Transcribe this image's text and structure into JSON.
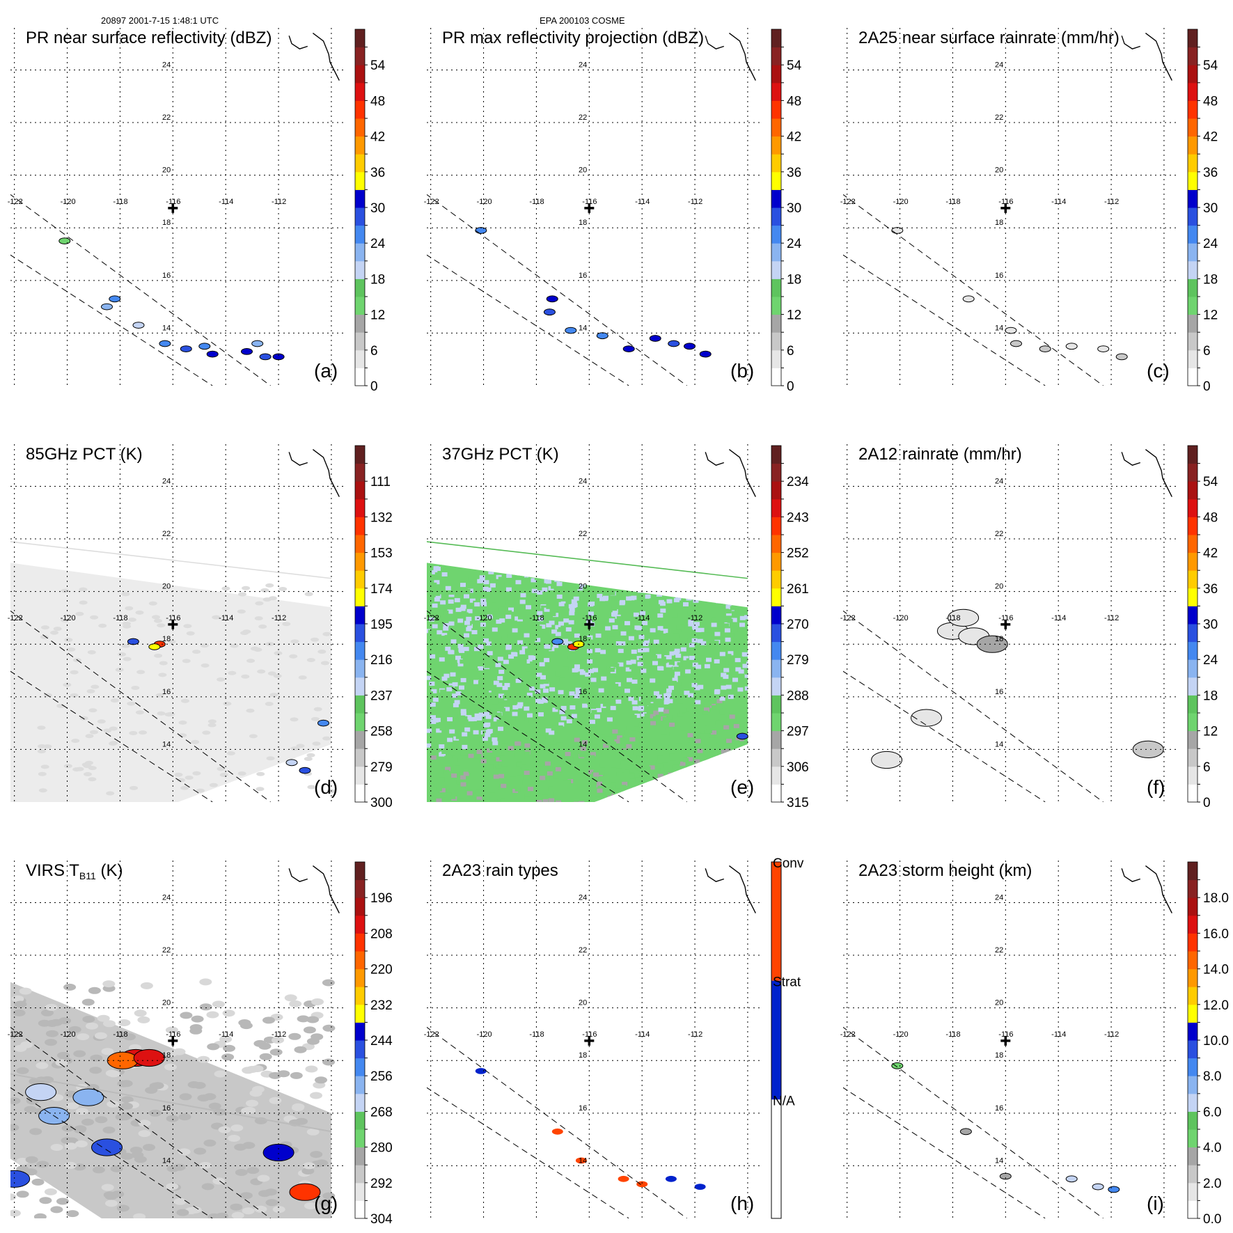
{
  "header": {
    "left": "20897 2001-7-15 1:48:1 UTC",
    "center": "EPA 200103 COSME"
  },
  "colors": {
    "ramp": [
      "#ffffff",
      "#e6e6e6",
      "#c8c8c8",
      "#a6a6a6",
      "#6fd46f",
      "#5ec45e",
      "#c4d4f4",
      "#8ab4f0",
      "#4488f0",
      "#2a50e0",
      "#0000cc",
      "#ffff00",
      "#ffcc00",
      "#ff9900",
      "#ff6600",
      "#ff3300",
      "#dd1111",
      "#aa1111",
      "#882222",
      "#602020"
    ],
    "raintype": {
      "na": "#ffffff",
      "strat": "#0022cc",
      "conv": "#ff4400"
    }
  },
  "grid": {
    "lon_ticks": [
      "-122",
      "-120",
      "-118",
      "-116",
      "-114",
      "-112"
    ],
    "lat_ticks": [
      "14",
      "16",
      "18",
      "20",
      "22",
      "24"
    ]
  },
  "chart_data": [
    {
      "id": "a",
      "type": "heatmap",
      "title": "PR near surface reflectivity (dBZ)",
      "label": "(a)",
      "colorbar": {
        "ticks": [
          "54",
          "48",
          "42",
          "36",
          "30",
          "24",
          "18",
          "12",
          "6",
          "0"
        ],
        "range": [
          0,
          60
        ]
      },
      "swath": "pr",
      "field": "pr_sparse",
      "cells": [
        [
          -120.1,
          17.5,
          12
        ],
        [
          -118.2,
          15.3,
          24
        ],
        [
          -118.5,
          15.0,
          22
        ],
        [
          -117.3,
          14.3,
          18
        ],
        [
          -116.3,
          13.6,
          26
        ],
        [
          -115.5,
          13.4,
          28
        ],
        [
          -114.8,
          13.5,
          24
        ],
        [
          -114.5,
          13.2,
          30
        ],
        [
          -113.2,
          13.3,
          30
        ],
        [
          -112.5,
          13.1,
          28
        ],
        [
          -112.0,
          13.1,
          32
        ],
        [
          -112.8,
          13.6,
          22
        ]
      ]
    },
    {
      "id": "b",
      "type": "heatmap",
      "title": "PR max reflectivity projection (dBZ)",
      "label": "(b)",
      "colorbar": {
        "ticks": [
          "54",
          "48",
          "42",
          "36",
          "30",
          "24",
          "18",
          "12",
          "6",
          "0"
        ],
        "range": [
          0,
          60
        ]
      },
      "swath": "pr",
      "field": "pr_sparse",
      "cells": [
        [
          -120.1,
          17.9,
          24
        ],
        [
          -117.4,
          15.3,
          32
        ],
        [
          -117.5,
          14.8,
          28
        ],
        [
          -116.7,
          14.1,
          26
        ],
        [
          -115.5,
          13.9,
          24
        ],
        [
          -114.5,
          13.4,
          30
        ],
        [
          -113.5,
          13.8,
          30
        ],
        [
          -112.8,
          13.6,
          28
        ],
        [
          -112.2,
          13.5,
          32
        ],
        [
          -111.6,
          13.2,
          30
        ]
      ]
    },
    {
      "id": "c",
      "type": "heatmap",
      "title": "2A25 near surface rainrate (mm/hr)",
      "label": "(c)",
      "colorbar": {
        "ticks": [
          "54",
          "48",
          "42",
          "36",
          "30",
          "24",
          "18",
          "12",
          "6",
          "0"
        ],
        "range": [
          0,
          60
        ]
      },
      "swath": "pr",
      "field": "pr_sparse",
      "cells": [
        [
          -120.1,
          17.9,
          4
        ],
        [
          -117.4,
          15.3,
          5
        ],
        [
          -115.8,
          14.1,
          4
        ],
        [
          -115.6,
          13.6,
          6
        ],
        [
          -114.5,
          13.4,
          6
        ],
        [
          -113.5,
          13.5,
          4
        ],
        [
          -112.3,
          13.4,
          5
        ],
        [
          -111.6,
          13.1,
          6
        ]
      ]
    },
    {
      "id": "d",
      "type": "heatmap",
      "title": "85GHz PCT (K)",
      "label": "(d)",
      "colorbar": {
        "ticks": [
          "111",
          "132",
          "153",
          "174",
          "195",
          "216",
          "237",
          "258",
          "279",
          "300"
        ],
        "range": [
          90,
          300
        ]
      },
      "swath": "tmi",
      "field": "pct85",
      "line_color": "#dddddd",
      "cells": [
        [
          -117.5,
          18.1,
          200
        ],
        [
          -116.5,
          18.0,
          140
        ],
        [
          -116.7,
          17.9,
          180
        ],
        [
          -110.3,
          15.0,
          210
        ],
        [
          -111.5,
          13.5,
          230
        ],
        [
          -111.0,
          13.2,
          205
        ]
      ]
    },
    {
      "id": "e",
      "type": "heatmap",
      "title": "37GHz PCT (K)",
      "label": "(e)",
      "colorbar": {
        "ticks": [
          "234",
          "243",
          "252",
          "261",
          "270",
          "279",
          "288",
          "297",
          "306",
          "315"
        ],
        "range": [
          225,
          315
        ]
      },
      "swath": "tmi",
      "field": "pct37",
      "line_color": "#55bb55",
      "cells": [
        [
          -116.6,
          17.9,
          245
        ],
        [
          -116.4,
          18.0,
          262
        ],
        [
          -117.2,
          18.1,
          275
        ],
        [
          -110.2,
          14.5,
          272
        ]
      ]
    },
    {
      "id": "f",
      "type": "heatmap",
      "title": "2A12 rainrate (mm/hr)",
      "label": "(f)",
      "colorbar": {
        "ticks": [
          "54",
          "48",
          "42",
          "36",
          "30",
          "24",
          "18",
          "12",
          "6",
          "0"
        ],
        "range": [
          0,
          60
        ]
      },
      "swath": "tmi",
      "field": "rain2a12",
      "cells": [
        [
          -118.0,
          18.5,
          4
        ],
        [
          -117.6,
          19.0,
          4
        ],
        [
          -117.2,
          18.3,
          4
        ],
        [
          -116.5,
          18.0,
          10
        ],
        [
          -119.0,
          15.2,
          4
        ],
        [
          -120.5,
          13.6,
          4
        ],
        [
          -110.6,
          14.0,
          6
        ]
      ]
    },
    {
      "id": "g",
      "type": "heatmap",
      "title": "VIRS T",
      "title_sub": "B11",
      "title_end": " (K)",
      "label": "(g)",
      "colorbar": {
        "ticks": [
          "196",
          "208",
          "220",
          "232",
          "244",
          "256",
          "268",
          "280",
          "292",
          "304"
        ],
        "range": [
          184,
          304
        ]
      },
      "swath": "virs",
      "field": "virs",
      "cells": [
        [
          -117.4,
          18.1,
          208
        ],
        [
          -117.9,
          18.0,
          215
        ],
        [
          -116.9,
          18.1,
          205
        ],
        [
          -121.0,
          16.8,
          266
        ],
        [
          -120.5,
          15.9,
          262
        ],
        [
          -119.2,
          16.6,
          258
        ],
        [
          -118.5,
          14.7,
          250
        ],
        [
          -111.0,
          13.0,
          212
        ],
        [
          -112.0,
          14.5,
          240
        ],
        [
          -122.0,
          13.5,
          250
        ]
      ]
    },
    {
      "id": "h",
      "type": "heatmap",
      "title": "2A23 rain types",
      "label": "(h)",
      "colorbar": {
        "ticks": [
          "Conv",
          "Strat",
          "N/A"
        ],
        "categorical": true
      },
      "swath": "pr",
      "field": "raintype",
      "cells": [
        [
          -120.1,
          17.6,
          "strat"
        ],
        [
          -117.2,
          15.3,
          "conv"
        ],
        [
          -116.3,
          14.2,
          "conv"
        ],
        [
          -114.7,
          13.5,
          "conv"
        ],
        [
          -112.9,
          13.5,
          "strat"
        ],
        [
          -111.8,
          13.2,
          "strat"
        ],
        [
          -114.0,
          13.3,
          "conv"
        ]
      ]
    },
    {
      "id": "i",
      "type": "heatmap",
      "title": "2A23 storm height (km)",
      "label": "(i)",
      "colorbar": {
        "ticks": [
          "18.0",
          "16.0",
          "14.0",
          "12.0",
          "10.0",
          "8.0",
          "6.0",
          "4.0",
          "2.0",
          "0.0"
        ],
        "range": [
          0,
          20
        ]
      },
      "swath": "pr",
      "field": "stormheight",
      "cells": [
        [
          -120.1,
          17.8,
          4.0
        ],
        [
          -117.5,
          15.3,
          3.0
        ],
        [
          -113.5,
          13.5,
          6.0
        ],
        [
          -112.5,
          13.2,
          6.0
        ],
        [
          -111.9,
          13.1,
          8.0
        ],
        [
          -116.0,
          13.6,
          3.0
        ]
      ]
    }
  ]
}
